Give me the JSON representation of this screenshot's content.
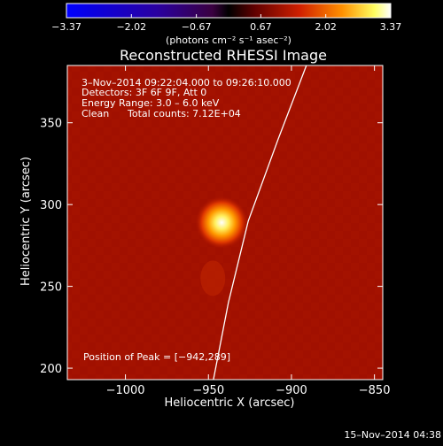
{
  "chart_data": {
    "type": "heatmap",
    "title": "Reconstructed RHESSI Image",
    "xlabel": "Heliocentric X (arcsec)",
    "ylabel": "Heliocentric Y (arcsec)",
    "xlim": [
      -1035,
      -845
    ],
    "ylim": [
      193,
      385
    ],
    "x_ticks": [
      -1000,
      -950,
      -900,
      -850
    ],
    "x_tick_labels": [
      "−1000",
      "−950",
      "−900",
      "−850"
    ],
    "y_ticks": [
      200,
      250,
      300,
      350
    ],
    "y_tick_labels": [
      "200",
      "250",
      "300",
      "350"
    ],
    "colorbar": {
      "min": -3.37,
      "max": 3.37,
      "ticks": [
        -3.37,
        -2.02,
        -0.67,
        0.67,
        2.02,
        3.37
      ],
      "tick_labels": [
        "−3.37",
        "−2.02",
        "−0.67",
        "0.67",
        "2.02",
        "3.37"
      ],
      "unit_label": "(photons cm⁻² s⁻¹ asec⁻²)"
    },
    "annotations": {
      "time_range": "3–Nov–2014 09:22:04.000 to 09:26:10.000",
      "detectors": "Detectors: 3F 6F 9F, Att 0",
      "energy": "Energy Range: 3.0 – 6.0 keV",
      "method": "Clean",
      "total_counts": "Total counts: 7.12E+04",
      "peak": "Position of Peak = [−942,289]"
    },
    "source": {
      "x": -942,
      "y": 289,
      "peak": 3.37
    },
    "limb_points": [
      [
        -947,
        193
      ],
      [
        -938,
        240
      ],
      [
        -926,
        290
      ],
      [
        -908,
        340
      ],
      [
        -891,
        385
      ]
    ],
    "grid": false,
    "legend": "none"
  },
  "footer": {
    "date": "15–Nov–2014 04:38"
  }
}
